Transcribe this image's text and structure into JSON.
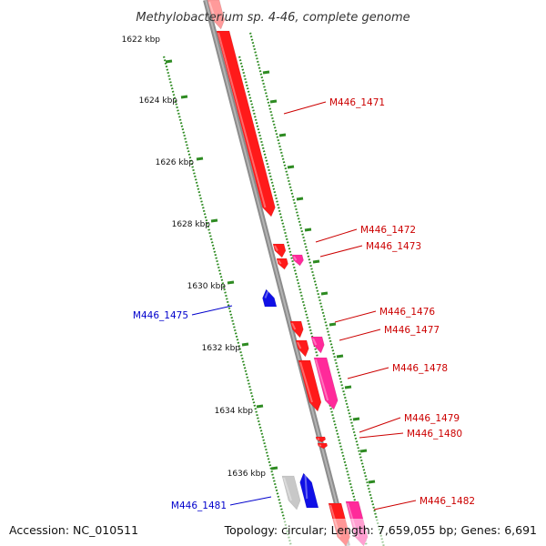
{
  "title": "Methylobacterium sp. 4-46, complete genome",
  "footer": {
    "accession": "Accession: NC_010511",
    "summary": "Topology: circular; Length: 7,659,055 bp; Genes: 6,691"
  },
  "colors": {
    "backbone": "#8c8c8c",
    "tick": "#2e8b22",
    "forward_gene": "#ff1a1a",
    "forward_gene_alt": "#ff2a9a",
    "reverse_gene": "#1010e6",
    "pseudo_gene": "#c8c8c8",
    "forward_label": "#cc0000",
    "reverse_label": "#0000cc"
  },
  "scale_labels": [
    "1622 kbp",
    "1624 kbp",
    "1626 kbp",
    "1628 kbp",
    "1630 kbp",
    "1632 kbp",
    "1634 kbp",
    "1636 kbp"
  ],
  "gene_labels": [
    {
      "text": "M446_1471",
      "strand": "forward"
    },
    {
      "text": "M446_1472",
      "strand": "forward"
    },
    {
      "text": "M446_1473",
      "strand": "forward"
    },
    {
      "text": "M446_1475",
      "strand": "reverse"
    },
    {
      "text": "M446_1476",
      "strand": "forward"
    },
    {
      "text": "M446_1477",
      "strand": "forward"
    },
    {
      "text": "M446_1478",
      "strand": "forward"
    },
    {
      "text": "M446_1479",
      "strand": "forward"
    },
    {
      "text": "M446_1480",
      "strand": "forward"
    },
    {
      "text": "M446_1481",
      "strand": "reverse"
    },
    {
      "text": "M446_1482",
      "strand": "forward"
    }
  ]
}
